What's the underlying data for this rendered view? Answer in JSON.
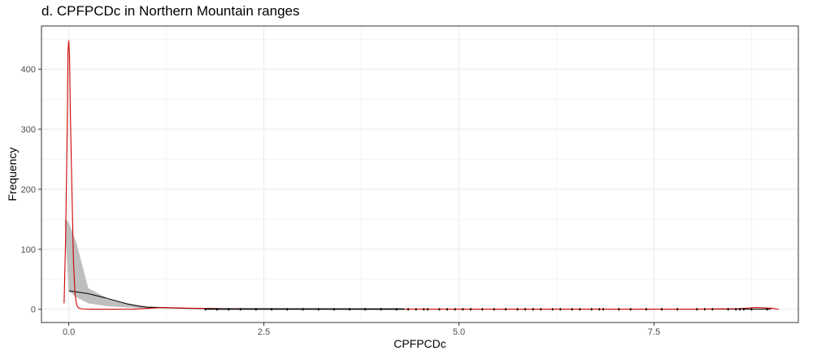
{
  "chart_data": {
    "type": "line",
    "title": "d. CPFPCDc in Northern Mountain ranges",
    "xlabel": "CPFPCDc",
    "ylabel": "Frequency",
    "xlim": [
      -0.35,
      9.35
    ],
    "ylim": [
      -22,
      472
    ],
    "x_ticks": [
      0.0,
      2.5,
      5.0,
      7.5
    ],
    "x_tick_labels": [
      "0.0",
      "2.5",
      "5.0",
      "7.5"
    ],
    "y_ticks": [
      0,
      100,
      200,
      300,
      400
    ],
    "y_tick_labels": [
      "0",
      "100",
      "200",
      "300",
      "400"
    ],
    "grid": true,
    "legend": "none",
    "colors": {
      "density_line": "#cc0000",
      "fitted_line": "#000000",
      "ribbon": "#bebebe",
      "grid": "#ebebeb",
      "panel_border": "#333333"
    },
    "series": [
      {
        "style": "ribbon",
        "x": [
          -0.05,
          0.0,
          0.1,
          0.25,
          0.5,
          0.75,
          1.0,
          1.5,
          2.0,
          3.0,
          4.0,
          5.0,
          6.0,
          7.0,
          8.0,
          9.0
        ],
        "y_low": [
          140,
          30,
          20,
          10,
          5,
          3,
          2,
          1,
          0.5,
          0.3,
          0.2,
          0.2,
          0.2,
          0.2,
          0.2,
          0.2
        ],
        "y_high": [
          150,
          145,
          110,
          35,
          18,
          10,
          5,
          2,
          1,
          0.6,
          0.4,
          0.4,
          0.4,
          0.4,
          0.4,
          0.4
        ]
      },
      {
        "style": "line",
        "x": [
          0.0,
          0.1,
          0.25,
          0.5,
          0.75,
          0.9,
          1.0,
          1.5,
          2.0,
          3.0,
          4.0,
          5.0,
          6.0,
          7.0,
          8.0,
          9.0
        ],
        "y": [
          31,
          29,
          26,
          18,
          9,
          5,
          3.5,
          1.5,
          0.8,
          0.4,
          0.3,
          0.3,
          0.3,
          0.3,
          0.3,
          0.3
        ]
      },
      {
        "style": "line",
        "x": [
          -0.06,
          -0.04,
          -0.02,
          -0.01,
          0.0,
          0.01,
          0.02,
          0.04,
          0.06,
          0.08,
          0.1,
          0.12,
          0.15,
          0.2,
          0.3,
          0.5,
          0.8,
          1.0,
          1.2,
          1.5,
          2.0,
          3.0,
          4.0,
          5.0,
          6.0,
          7.0,
          8.0,
          8.6,
          8.8,
          9.0,
          9.1
        ],
        "y": [
          10,
          120,
          300,
          430,
          448,
          420,
          330,
          200,
          80,
          25,
          8,
          3,
          1,
          0.5,
          0.2,
          0.1,
          0.3,
          1.5,
          3,
          2,
          1,
          0.5,
          0.3,
          0.3,
          0.3,
          0.3,
          0.3,
          1,
          3,
          2,
          0
        ]
      }
    ],
    "rug_x": [
      1.75,
      1.9,
      2.05,
      2.2,
      2.4,
      2.6,
      2.8,
      3.0,
      3.2,
      3.4,
      3.6,
      3.8,
      4.0,
      4.2,
      4.35,
      4.45,
      4.55,
      4.6,
      4.75,
      4.85,
      4.95,
      5.05,
      5.15,
      5.3,
      5.45,
      5.6,
      5.75,
      5.85,
      5.95,
      6.05,
      6.2,
      6.3,
      6.45,
      6.55,
      6.7,
      6.8,
      6.85,
      7.05,
      7.2,
      7.4,
      7.6,
      7.8,
      8.05,
      8.15,
      8.25,
      8.45,
      8.55,
      8.6,
      8.65,
      8.75,
      8.95
    ]
  }
}
